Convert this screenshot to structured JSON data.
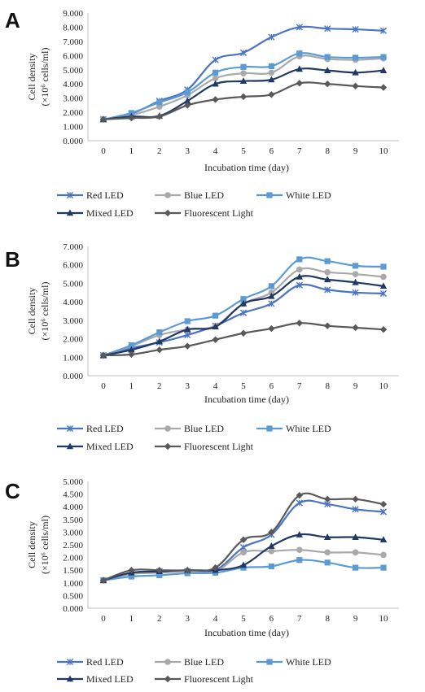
{
  "colors": {
    "red_led": "#4a74c4",
    "blue_led": "#a9a9a9",
    "white_led": "#5b9bd5",
    "mixed_led": "#203864",
    "fluorescent": "#595959"
  },
  "marker_names": {
    "red_led": "x-star",
    "blue_led": "circle",
    "white_led": "square",
    "mixed_led": "triangle",
    "fluorescent": "diamond"
  },
  "chart_data": [
    {
      "type": "line",
      "panel": "A",
      "xlabel": "Incubation time (day)",
      "ylabel_line1": "Cell density",
      "ylabel_line2": "(×10⁶ cells/ml)",
      "x": [
        0,
        1,
        2,
        3,
        4,
        5,
        6,
        7,
        8,
        9,
        10
      ],
      "ylim": [
        0,
        9
      ],
      "y_ticks": [
        "0.000",
        "1.000",
        "2.000",
        "3.000",
        "4.000",
        "5.000",
        "6.000",
        "7.000",
        "8.000",
        "9.000"
      ],
      "x_ticks": [
        "0",
        "1",
        "2",
        "3",
        "4",
        "5",
        "6",
        "7",
        "8",
        "9",
        "10"
      ],
      "series": [
        {
          "key": "red_led",
          "name": "Red LED",
          "values": [
            1.5,
            1.9,
            2.8,
            3.6,
            5.7,
            6.2,
            7.3,
            8.0,
            7.9,
            7.85,
            7.75
          ]
        },
        {
          "key": "blue_led",
          "name": "Blue LED",
          "values": [
            1.5,
            1.8,
            2.4,
            3.2,
            4.4,
            4.75,
            4.8,
            5.95,
            5.75,
            5.7,
            5.8
          ]
        },
        {
          "key": "white_led",
          "name": "White LED",
          "values": [
            1.5,
            1.95,
            2.7,
            3.4,
            4.8,
            5.2,
            5.25,
            6.15,
            5.9,
            5.85,
            5.9
          ]
        },
        {
          "key": "mixed_led",
          "name": "Mixed LED",
          "values": [
            1.5,
            1.7,
            1.75,
            2.8,
            4.0,
            4.2,
            4.3,
            5.05,
            4.95,
            4.8,
            4.95
          ]
        },
        {
          "key": "fluorescent",
          "name": "Fluorescent Light",
          "values": [
            1.5,
            1.6,
            1.7,
            2.5,
            2.9,
            3.1,
            3.25,
            4.05,
            4.0,
            3.85,
            3.75
          ]
        }
      ],
      "legend": {
        "position": "bottom"
      },
      "grid": false
    },
    {
      "type": "line",
      "panel": "B",
      "xlabel": "Incubation time (day)",
      "ylabel_line1": "Cell density",
      "ylabel_line2": "(×10⁶ cells/ml)",
      "x": [
        0,
        1,
        2,
        3,
        4,
        5,
        6,
        7,
        8,
        9,
        10
      ],
      "ylim": [
        0,
        7
      ],
      "y_ticks": [
        "0.000",
        "1.000",
        "2.000",
        "3.000",
        "4.000",
        "5.000",
        "6.000",
        "7.000"
      ],
      "x_ticks": [
        "0",
        "1",
        "2",
        "3",
        "4",
        "5",
        "6",
        "7",
        "8",
        "9",
        "10"
      ],
      "series": [
        {
          "key": "red_led",
          "name": "Red LED",
          "values": [
            1.1,
            1.5,
            1.8,
            2.2,
            2.7,
            3.4,
            3.9,
            4.9,
            4.65,
            4.5,
            4.45
          ]
        },
        {
          "key": "blue_led",
          "name": "Blue LED",
          "values": [
            1.1,
            1.6,
            2.2,
            2.5,
            2.7,
            3.9,
            4.5,
            5.75,
            5.6,
            5.5,
            5.35
          ]
        },
        {
          "key": "white_led",
          "name": "White LED",
          "values": [
            1.1,
            1.65,
            2.35,
            2.95,
            3.25,
            4.15,
            4.85,
            6.3,
            6.2,
            5.95,
            5.9
          ]
        },
        {
          "key": "mixed_led",
          "name": "Mixed LED",
          "values": [
            1.1,
            1.4,
            1.85,
            2.5,
            2.65,
            3.9,
            4.3,
            5.35,
            5.2,
            5.05,
            4.85
          ]
        },
        {
          "key": "fluorescent",
          "name": "Fluorescent Light",
          "values": [
            1.1,
            1.15,
            1.4,
            1.6,
            1.95,
            2.3,
            2.55,
            2.85,
            2.7,
            2.6,
            2.5
          ]
        }
      ],
      "legend": {
        "position": "bottom"
      },
      "grid": false
    },
    {
      "type": "line",
      "panel": "C",
      "xlabel": "Incubation time (day)",
      "ylabel_line1": "Cell density",
      "ylabel_line2": "(×10⁶ cells/ml)",
      "x": [
        0,
        1,
        2,
        3,
        4,
        5,
        6,
        7,
        8,
        9,
        10
      ],
      "ylim": [
        0,
        5
      ],
      "y_ticks": [
        "0.000",
        "0.500",
        "1.000",
        "1.500",
        "2.000",
        "2.500",
        "3.000",
        "3.500",
        "4.000",
        "4.500",
        "5.000"
      ],
      "x_ticks": [
        "0",
        "1",
        "2",
        "3",
        "4",
        "5",
        "6",
        "7",
        "8",
        "9",
        "10"
      ],
      "series": [
        {
          "key": "red_led",
          "name": "Red LED",
          "values": [
            1.1,
            1.4,
            1.45,
            1.45,
            1.5,
            2.4,
            2.9,
            4.15,
            4.1,
            3.9,
            3.8
          ]
        },
        {
          "key": "blue_led",
          "name": "Blue LED",
          "values": [
            1.1,
            1.35,
            1.4,
            1.45,
            1.45,
            2.2,
            2.25,
            2.3,
            2.2,
            2.2,
            2.1
          ]
        },
        {
          "key": "white_led",
          "name": "White LED",
          "values": [
            1.1,
            1.25,
            1.3,
            1.38,
            1.4,
            1.6,
            1.65,
            1.9,
            1.8,
            1.6,
            1.6
          ]
        },
        {
          "key": "mixed_led",
          "name": "Mixed LED",
          "values": [
            1.1,
            1.4,
            1.45,
            1.5,
            1.5,
            1.7,
            2.45,
            2.9,
            2.8,
            2.8,
            2.7
          ]
        },
        {
          "key": "fluorescent",
          "name": "Fluorescent Light",
          "values": [
            1.1,
            1.5,
            1.5,
            1.5,
            1.6,
            2.7,
            3.0,
            4.45,
            4.3,
            4.3,
            4.1
          ]
        }
      ],
      "legend": {
        "position": "bottom"
      },
      "grid": false
    }
  ]
}
